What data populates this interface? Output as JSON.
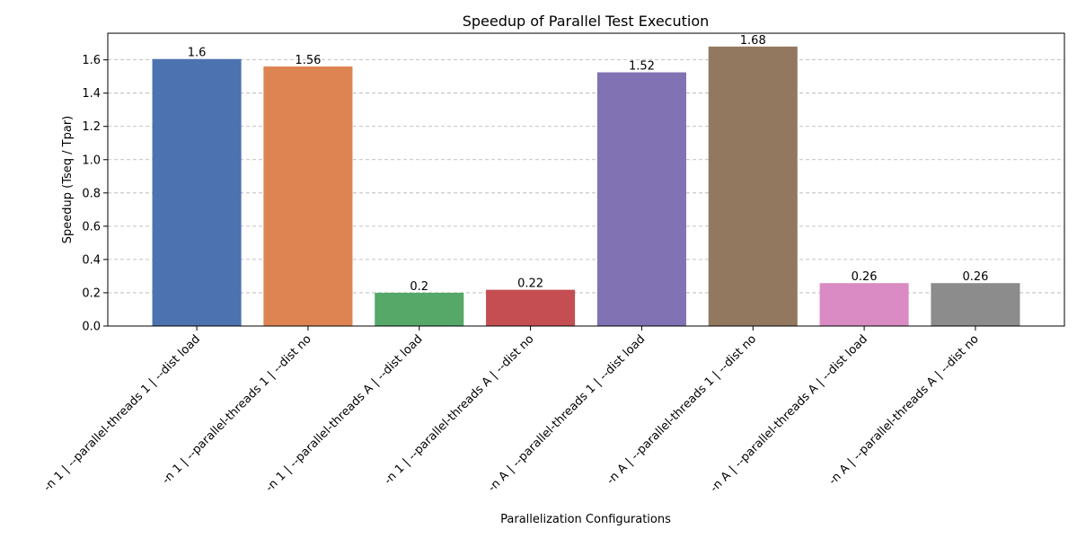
{
  "chart_data": {
    "type": "bar",
    "title": "Speedup of Parallel Test Execution",
    "xlabel": "Parallelization Configurations",
    "ylabel": "Speedup (Tseq / Tpar)",
    "ylim": [
      0,
      1.76
    ],
    "yticks": [
      "0.0",
      "0.2",
      "0.4",
      "0.6",
      "0.8",
      "1.0",
      "1.2",
      "1.4",
      "1.6"
    ],
    "grid": "y-dashed",
    "categories": [
      "-n 1 | --parallel-threads 1 | --dist load",
      "-n 1 | --parallel-threads 1 | --dist no",
      "-n 1 | --parallel-threads A | --dist load",
      "-n 1 | --parallel-threads A | --dist no",
      "-n A | --parallel-threads 1 | --dist load",
      "-n A | --parallel-threads 1 | --dist no",
      "-n A | --parallel-threads A | --dist load",
      "-n A | --parallel-threads A | --dist no"
    ],
    "values": [
      1.605,
      1.56,
      0.2,
      0.218,
      1.525,
      1.68,
      0.258,
      0.258
    ],
    "value_labels": [
      "1.6",
      "1.56",
      "0.2",
      "0.22",
      "1.52",
      "1.68",
      "0.26",
      "0.26"
    ],
    "colors": [
      "#4c72b0",
      "#dd8452",
      "#55a868",
      "#c44e52",
      "#8172b3",
      "#937860",
      "#da8bc3",
      "#8c8c8c"
    ]
  }
}
